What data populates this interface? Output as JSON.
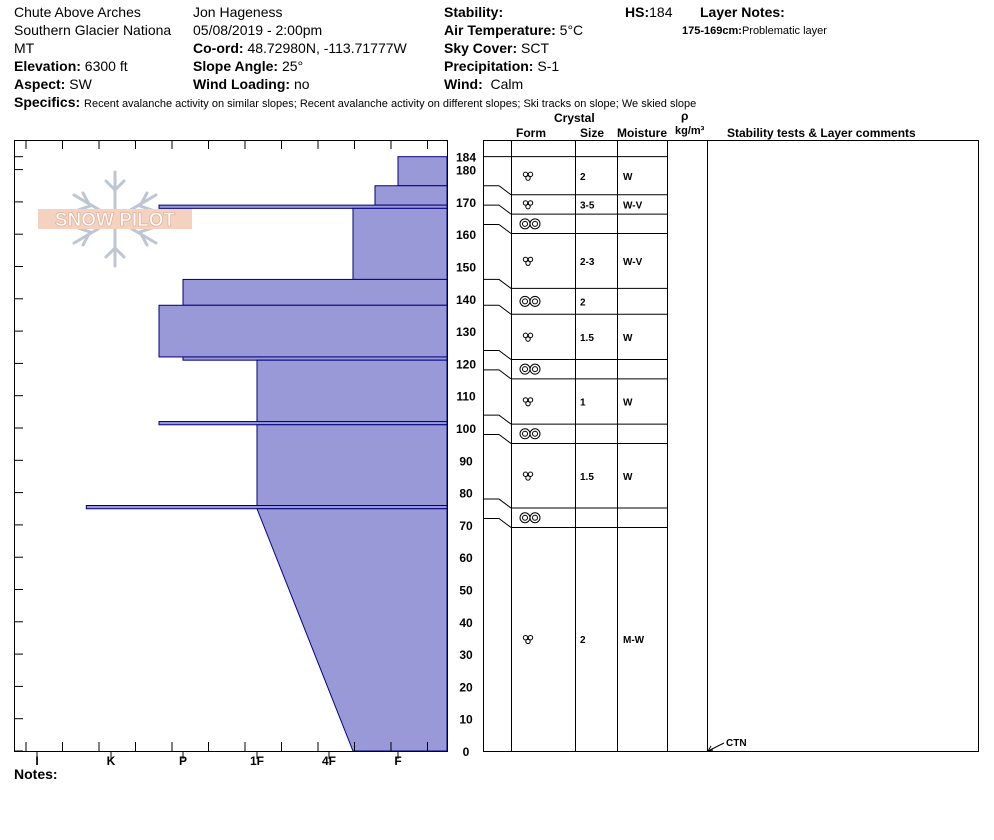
{
  "header": {
    "location": "Chute Above Arches",
    "region": "Southern Glacier Nationa",
    "state": "MT",
    "elevation_label": "Elevation:",
    "elevation_value": "6300 ft",
    "aspect_label": "Aspect:",
    "aspect_value": "SW",
    "observer": "Jon Hageness",
    "datetime": "05/08/2019 - 2:00pm",
    "coord_label": "Co-ord:",
    "coord_value": "48.72980N, -113.71777W",
    "slope_label": "Slope Angle:",
    "slope_value": "25°",
    "wind_loading_label": "Wind Loading:",
    "wind_loading_value": "no",
    "stability_label": "Stability:",
    "stability_value": "",
    "air_temp_label": "Air Temperature:",
    "air_temp_value": "5°C",
    "sky_label": "Sky Cover:",
    "sky_value": "SCT",
    "precip_label": "Precipitation:",
    "precip_value": "S-1",
    "wind_label": "Wind:",
    "wind_value": "Calm",
    "hs_label": "HS:",
    "hs_value": "184",
    "layer_notes_label": "Layer Notes:",
    "layer_note_range": "175-169cm:",
    "layer_note_text": "Problematic layer",
    "specifics_label": "Specifics:",
    "specifics_text": "Recent avalanche activity on similar slopes; Recent avalanche activity on different slopes;  Ski tracks on slope;  We skied slope",
    "notes_label": "Notes:"
  },
  "logo": {
    "text": "SNOW PILOT"
  },
  "table_headers": {
    "crystal": "Crystal",
    "form": "Form",
    "size": "Size",
    "moisture": "Moisture",
    "rho": "ρ",
    "density_unit": "kg/m³",
    "comments": "Stability tests & Layer comments"
  },
  "colors": {
    "hardness_fill": "#9999d8",
    "line": "#000080"
  },
  "chart_data": {
    "type": "snow-profile",
    "x_axis_labels": [
      "I",
      "K",
      "P",
      "1F",
      "4F",
      "F"
    ],
    "y_ticks": [
      0,
      10,
      20,
      30,
      40,
      50,
      60,
      70,
      80,
      90,
      100,
      110,
      120,
      130,
      140,
      150,
      160,
      170,
      180,
      184
    ],
    "hs": 184,
    "hardness_profile": [
      {
        "top": 184,
        "bottom": 175,
        "hardness": "F"
      },
      {
        "top": 175,
        "bottom": 169,
        "hardness": "F+"
      },
      {
        "top": 169,
        "bottom": 168,
        "hardness": "P+"
      },
      {
        "top": 168,
        "bottom": 146,
        "hardness": "4F-"
      },
      {
        "top": 146,
        "bottom": 138,
        "hardness": "P"
      },
      {
        "top": 138,
        "bottom": 122,
        "hardness": "P+"
      },
      {
        "top": 122,
        "bottom": 121,
        "hardness": "P"
      },
      {
        "top": 121,
        "bottom": 102,
        "hardness": "1F"
      },
      {
        "top": 102,
        "bottom": 101,
        "hardness": "P+"
      },
      {
        "top": 101,
        "bottom": 76,
        "hardness": "1F"
      },
      {
        "top": 76,
        "bottom": 75,
        "hardness": "K+"
      },
      {
        "top": 75,
        "bottom": 0,
        "hardness_top": "1F",
        "hardness_bottom": "4F-"
      }
    ],
    "layers": [
      {
        "top": 184,
        "bottom": 175,
        "form": "melt",
        "size": "2",
        "moisture": "W"
      },
      {
        "top": 175,
        "bottom": 169,
        "form": "melt",
        "size": "3-5",
        "moisture": "W-V"
      },
      {
        "top": 169,
        "bottom": 163,
        "form": "crust",
        "size": "",
        "moisture": ""
      },
      {
        "top": 163,
        "bottom": 146,
        "form": "melt",
        "size": "2-3",
        "moisture": "W-V"
      },
      {
        "top": 146,
        "bottom": 138,
        "form": "crust",
        "size": "2",
        "moisture": ""
      },
      {
        "top": 138,
        "bottom": 124,
        "form": "melt",
        "size": "1.5",
        "moisture": "W"
      },
      {
        "top": 124,
        "bottom": 118,
        "form": "crust",
        "size": "",
        "moisture": ""
      },
      {
        "top": 118,
        "bottom": 104,
        "form": "melt",
        "size": "1",
        "moisture": "W"
      },
      {
        "top": 104,
        "bottom": 98,
        "form": "crust",
        "size": "",
        "moisture": ""
      },
      {
        "top": 98,
        "bottom": 78,
        "form": "melt",
        "size": "1.5",
        "moisture": "W"
      },
      {
        "top": 78,
        "bottom": 72,
        "form": "crust",
        "size": "",
        "moisture": ""
      },
      {
        "top": 72,
        "bottom": 0,
        "form": "melt",
        "size": "2",
        "moisture": "M-W"
      }
    ],
    "tests": [
      {
        "depth": 0,
        "label": "CTN"
      }
    ]
  }
}
